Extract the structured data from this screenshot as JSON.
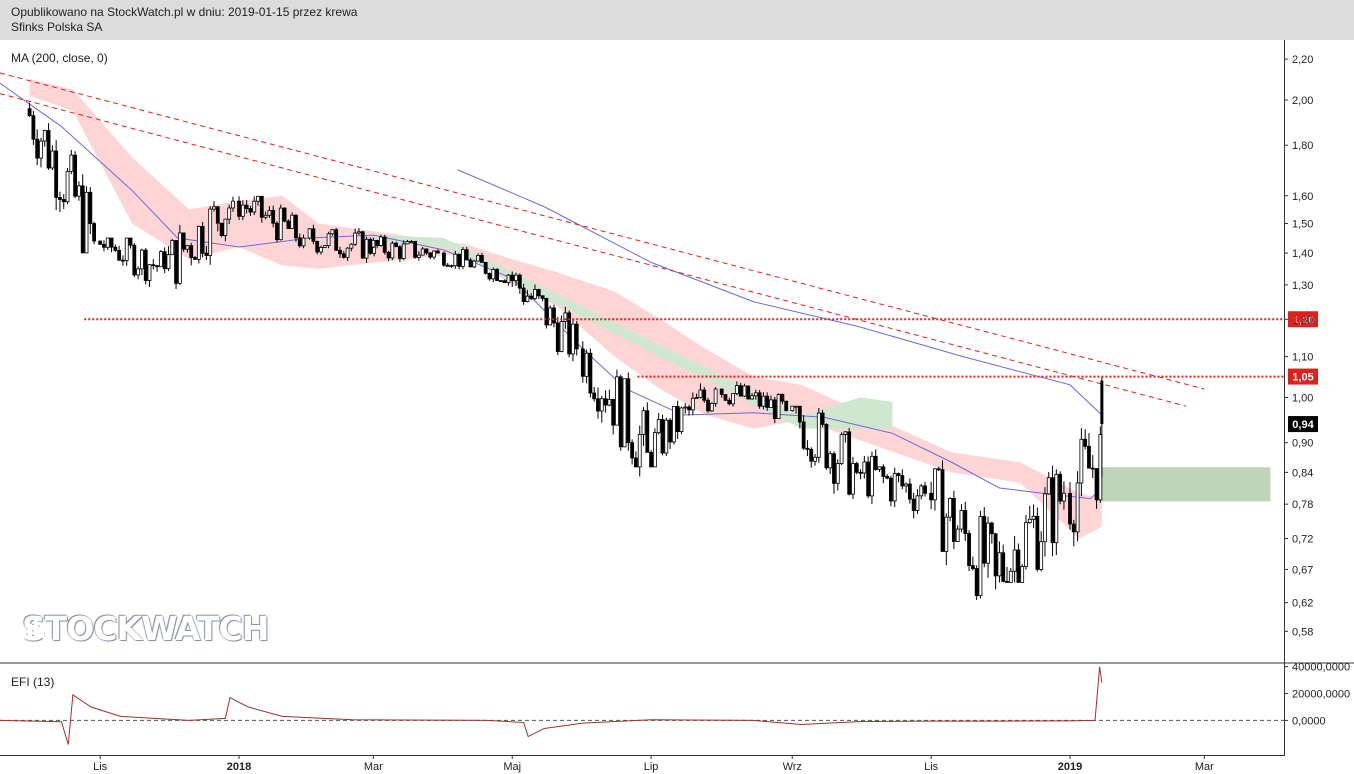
{
  "header": {
    "published": "Opublikowano na StockWatch.pl w dniu: 2019-01-15 przez krewa",
    "company": "Sfinks Polska SA"
  },
  "watermark": {
    "text": "STOCKWATCH"
  },
  "indicators": {
    "ma_label": "MA (200, close, 0)",
    "efi_label": "EFI (13)"
  },
  "colors": {
    "header_bg": "#dcdcdc",
    "candle": "#000000",
    "ma_line": "#6b6bdc",
    "trendline": "#e0201a",
    "cloud_bearish": "#ffd4d4",
    "cloud_bullish": "#cfe6cf",
    "target_zone": "#a9c79f",
    "efi_line": "#a0302a"
  },
  "chart_data": [
    {
      "type": "candlestick",
      "title": "",
      "x_ticks": [
        "Lis",
        "2018",
        "Mar",
        "Maj",
        "Lip",
        "Wrz",
        "Lis",
        "2019",
        "Mar"
      ],
      "x_range": [
        "2017-09-18",
        "2019-04-05"
      ],
      "y_ticks": [
        "2,20",
        "2,00",
        "1,80",
        "1,60",
        "1,50",
        "1,40",
        "1,30",
        "1,20",
        "1,10",
        "1,00",
        "0,90",
        "0,84",
        "0,78",
        "0,72",
        "0,67",
        "0,62",
        "0,58"
      ],
      "y_scale": "log",
      "ylim": [
        0.54,
        2.3
      ],
      "last_price": {
        "value": 0.94,
        "label": "0,94"
      },
      "levels": [
        {
          "value": 1.2,
          "label": "1,20",
          "style": "dotted-red",
          "from": "2017-10-25"
        },
        {
          "value": 1.05,
          "label": "1,05",
          "style": "dotted-red",
          "from": "2018-06-25"
        }
      ],
      "trendlines": [
        {
          "style": "dashed-red",
          "from": [
            "2017-09-18",
            2.13
          ],
          "to": [
            "2019-03-01",
            1.02
          ]
        },
        {
          "style": "dashed-red",
          "from": [
            "2017-09-18",
            2.03
          ],
          "to": [
            "2019-02-21",
            0.98
          ]
        }
      ],
      "ma_200": [
        [
          "2017-09-18",
          2.08
        ],
        [
          "2017-10-15",
          1.88
        ],
        [
          "2017-11-15",
          1.62
        ],
        [
          "2017-12-05",
          1.45
        ],
        [
          "2018-01-01",
          1.42
        ],
        [
          "2018-02-01",
          1.45
        ],
        [
          "2018-03-01",
          1.46
        ],
        [
          "2018-04-01",
          1.41
        ],
        [
          "2018-05-01",
          1.32
        ],
        [
          "2018-06-01",
          1.12
        ],
        [
          "2018-06-20",
          1.02
        ],
        [
          "2018-07-15",
          0.96
        ],
        [
          "2018-08-15",
          0.965
        ],
        [
          "2018-09-15",
          0.955
        ],
        [
          "2018-10-15",
          0.92
        ],
        [
          "2018-11-10",
          0.86
        ],
        [
          "2018-12-01",
          0.81
        ],
        [
          "2018-12-20",
          0.8
        ],
        [
          "2019-01-10",
          0.79
        ],
        [
          "2019-01-15",
          0.81
        ]
      ],
      "ma_200_upper": [
        [
          "2018-04-07",
          1.7
        ],
        [
          "2018-05-15",
          1.56
        ],
        [
          "2018-07-01",
          1.37
        ],
        [
          "2018-08-15",
          1.25
        ],
        [
          "2018-09-30",
          1.18
        ],
        [
          "2018-11-15",
          1.1
        ],
        [
          "2019-01-01",
          1.03
        ],
        [
          "2019-01-15",
          0.96
        ]
      ],
      "cloud_bearish": [
        [
          "2017-10-01",
          2.1,
          2.02
        ],
        [
          "2017-10-20",
          2.05,
          1.95
        ],
        [
          "2017-11-15",
          1.75,
          1.5
        ],
        [
          "2017-12-10",
          1.55,
          1.38
        ],
        [
          "2018-01-01",
          1.58,
          1.42
        ],
        [
          "2018-01-20",
          1.6,
          1.36
        ],
        [
          "2018-02-05",
          1.5,
          1.35
        ],
        [
          "2018-04-10",
          1.43,
          1.4
        ],
        [
          "2018-05-01",
          1.38,
          1.3
        ],
        [
          "2018-05-20",
          1.34,
          1.24
        ],
        [
          "2018-06-15",
          1.28,
          1.1
        ],
        [
          "2018-07-05",
          1.2,
          1.02
        ],
        [
          "2018-07-25",
          1.12,
          0.96
        ],
        [
          "2018-08-15",
          1.05,
          0.93
        ],
        [
          "2018-09-05",
          1.03,
          0.95
        ],
        [
          "2018-11-10",
          0.88,
          0.84
        ],
        [
          "2018-12-10",
          0.86,
          0.82
        ],
        [
          "2019-01-05",
          0.8,
          0.72
        ],
        [
          "2019-01-15",
          0.79,
          0.74
        ]
      ],
      "cloud_bullish": [
        [
          "2018-03-01",
          1.46,
          1.44
        ],
        [
          "2018-04-01",
          1.45,
          1.42
        ],
        [
          "2018-09-05",
          0.96,
          0.93
        ],
        [
          "2018-10-01",
          1.0,
          0.93
        ],
        [
          "2018-10-15",
          0.99,
          0.93
        ]
      ],
      "target_zone": {
        "from": "2019-01-15",
        "to": "2019-03-30",
        "y_low": 0.785,
        "y_high": 0.85
      },
      "candles_monthly_summary": [
        {
          "month": "2017-10",
          "open": 1.96,
          "high": 2.0,
          "low": 1.4,
          "close": 1.44
        },
        {
          "month": "2017-11",
          "open": 1.44,
          "high": 1.45,
          "low": 1.2,
          "close": 1.35
        },
        {
          "month": "2017-12",
          "open": 1.35,
          "high": 1.62,
          "low": 1.22,
          "close": 1.58
        },
        {
          "month": "2018-01",
          "open": 1.58,
          "high": 1.6,
          "low": 1.35,
          "close": 1.45
        },
        {
          "month": "2018-02",
          "open": 1.45,
          "high": 1.55,
          "low": 1.35,
          "close": 1.42
        },
        {
          "month": "2018-03",
          "open": 1.42,
          "high": 1.5,
          "low": 1.34,
          "close": 1.4
        },
        {
          "month": "2018-04",
          "open": 1.4,
          "high": 1.42,
          "low": 1.28,
          "close": 1.33
        },
        {
          "month": "2018-05",
          "open": 1.33,
          "high": 1.35,
          "low": 1.08,
          "close": 1.12
        },
        {
          "month": "2018-06",
          "open": 1.12,
          "high": 1.14,
          "low": 0.8,
          "close": 0.88
        },
        {
          "month": "2018-07",
          "open": 0.88,
          "high": 1.05,
          "low": 0.85,
          "close": 1.02
        },
        {
          "month": "2018-08",
          "open": 1.02,
          "high": 1.05,
          "low": 0.92,
          "close": 0.97
        },
        {
          "month": "2018-09",
          "open": 0.97,
          "high": 0.98,
          "low": 0.72,
          "close": 0.84
        },
        {
          "month": "2018-10",
          "open": 0.84,
          "high": 0.91,
          "low": 0.72,
          "close": 0.8
        },
        {
          "month": "2018-11",
          "open": 0.8,
          "high": 0.87,
          "low": 0.58,
          "close": 0.66
        },
        {
          "month": "2018-12",
          "open": 0.66,
          "high": 0.97,
          "low": 0.65,
          "close": 0.8
        },
        {
          "month": "2019-01",
          "open": 0.8,
          "high": 1.05,
          "low": 0.7,
          "close": 0.94
        }
      ]
    },
    {
      "type": "line",
      "title": "",
      "y_ticks": [
        "40000,0000",
        "20000,0000",
        "0,0000"
      ],
      "ylim": [
        -25000,
        42000
      ],
      "series": [
        {
          "name": "",
          "points": [
            [
              "2017-09-18",
              0
            ],
            [
              "2017-10-15",
              -1000
            ],
            [
              "2017-10-18",
              -18000
            ],
            [
              "2017-10-20",
              19000
            ],
            [
              "2017-10-28",
              10000
            ],
            [
              "2017-11-10",
              3000
            ],
            [
              "2017-12-10",
              0
            ],
            [
              "2017-12-26",
              1500
            ],
            [
              "2017-12-28",
              17000
            ],
            [
              "2018-01-05",
              10000
            ],
            [
              "2018-01-20",
              3000
            ],
            [
              "2018-02-20",
              500
            ],
            [
              "2018-04-20",
              0
            ],
            [
              "2018-05-06",
              -1500
            ],
            [
              "2018-05-08",
              -12000
            ],
            [
              "2018-05-15",
              -6000
            ],
            [
              "2018-06-01",
              -2000
            ],
            [
              "2018-07-01",
              500
            ],
            [
              "2018-08-15",
              0
            ],
            [
              "2018-09-05",
              -3000
            ],
            [
              "2018-10-01",
              -800
            ],
            [
              "2018-11-01",
              -500
            ],
            [
              "2018-12-01",
              -500
            ],
            [
              "2019-01-01",
              -300
            ],
            [
              "2019-01-12",
              0
            ],
            [
              "2019-01-14",
              40000
            ],
            [
              "2019-01-15",
              28000
            ]
          ]
        }
      ]
    }
  ]
}
